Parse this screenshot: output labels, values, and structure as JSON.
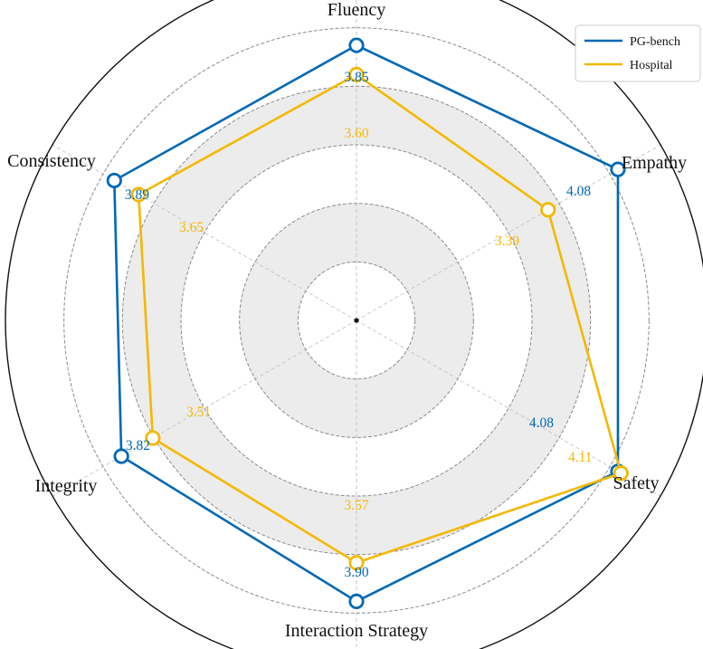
{
  "chart_data": {
    "type": "radar",
    "axes": [
      "Fluency",
      "Empathy",
      "Safety",
      "Interaction Strategy",
      "Integrity",
      "Consistency"
    ],
    "rlim": [
      1.5,
      4.5
    ],
    "grid_rings": [
      2.0,
      2.5,
      3.0,
      3.5,
      4.0
    ],
    "series": [
      {
        "name": "PG-bench",
        "color": "#0068b5",
        "values": [
          3.85,
          4.08,
          4.08,
          3.9,
          3.82,
          3.89
        ],
        "labels": [
          "3.85",
          "4.08",
          "4.08",
          "3.90",
          "3.82",
          "3.89"
        ]
      },
      {
        "name": "Hospital",
        "color": "#f5b800",
        "values": [
          3.6,
          3.39,
          4.11,
          3.57,
          3.51,
          3.65
        ],
        "labels": [
          "3.60",
          "3.39",
          "4.11",
          "3.57",
          "3.51",
          "3.65"
        ]
      }
    ],
    "legend": {
      "placement": "top-right"
    },
    "grid": true
  }
}
